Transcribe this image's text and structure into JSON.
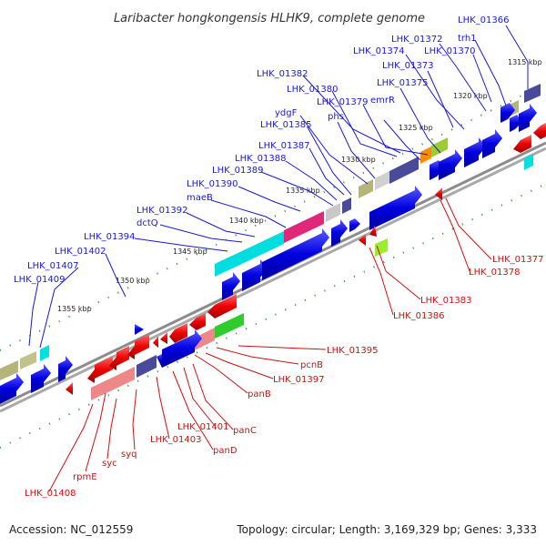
{
  "title": "Laribacter hongkongensis HLHK9, complete genome",
  "footer": {
    "accession": "Accession: NC_012559",
    "summary": "Topology: circular; Length: 3,169,329 bp; Genes: 3,333"
  },
  "colors": {
    "top_label": "#1a1acc",
    "bottom_label": "#cc1111",
    "tick": "#1e8c1e",
    "backbone": "#8c8c8c"
  },
  "scale_labels": [
    "1315 kbp",
    "1320 kbp",
    "1325 kbp",
    "1330 kbp",
    "1335 kbp",
    "1340 kbp",
    "1345 kbp",
    "1350 kbp",
    "1355 kbp"
  ],
  "top_gene_labels": [
    "LHK_01366",
    "trh1",
    "LHK_01372",
    "LHK_01370",
    "LHK_01374",
    "LHK_01373",
    "LHK_01382",
    "LHK_01375",
    "LHK_01380",
    "LHK_01379",
    "emrR",
    "ydgF",
    "phs",
    "LHK_01385",
    "LHK_01387",
    "LHK_01388",
    "LHK_01389",
    "LHK_01390",
    "maeB",
    "LHK_01392",
    "dctQ",
    "LHK_01394",
    "LHK_01402",
    "LHK_01407",
    "LHK_01409"
  ],
  "bottom_gene_labels": [
    "LHK_01377",
    "LHK_01378",
    "LHK_01383",
    "LHK_01386",
    "LHK_01395",
    "pcnB",
    "LHK_01397",
    "panB",
    "panC",
    "LHK_01401",
    "panD",
    "LHK_01403",
    "syq",
    "syc",
    "rpmE",
    "LHK_01408"
  ]
}
